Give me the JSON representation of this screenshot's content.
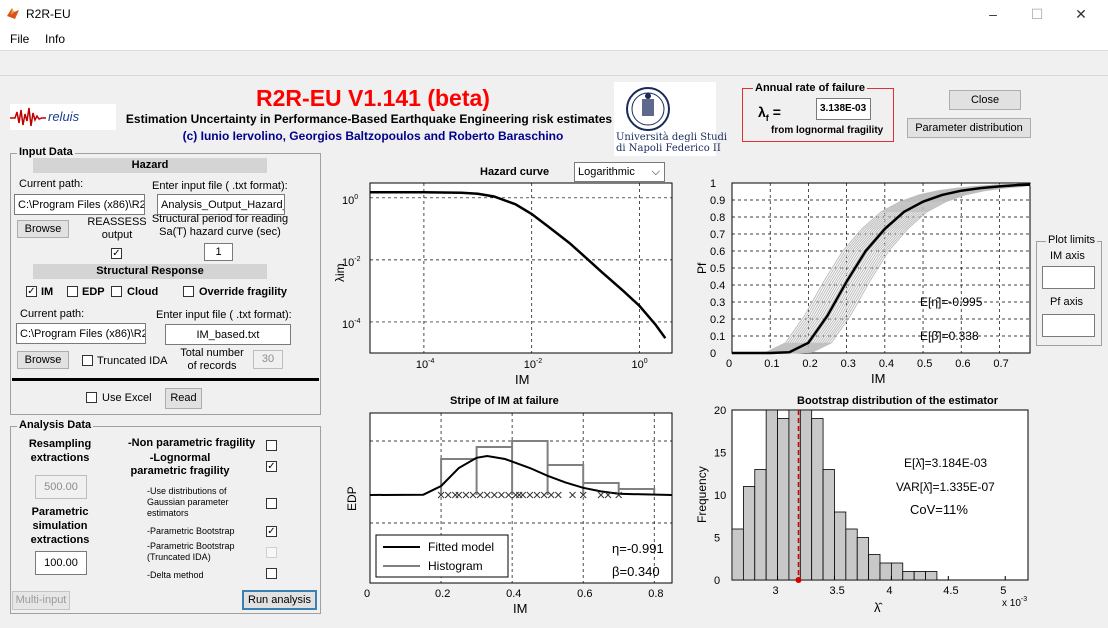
{
  "window": {
    "title": "R2R-EU",
    "minimize": "–",
    "maximize": "☐",
    "close": "✕"
  },
  "menu": {
    "file": "File",
    "info": "Info"
  },
  "header": {
    "app_title": "R2R-EU V1.141 (beta)",
    "subtitle": "Estimation Uncertainty in Performance-Based Earthquake Engineering risk estimates",
    "authors": "(c) Iunio Iervolino, Georgios Baltzopoulos and Roberto Baraschino",
    "reluis_logo": "reluis",
    "university_line1": "Università degli Studi",
    "university_line2": "di Napoli Federico II",
    "title_color": "#ff0000",
    "authors_color": "#00008b"
  },
  "annual_rate": {
    "title": "Annual rate of failure",
    "symbol": "λ",
    "subscript": "f",
    "equals": "=",
    "value": "3.138E-03",
    "note": "from lognormal fragility"
  },
  "buttons": {
    "close": "Close",
    "parameter_distribution": "Parameter distribution",
    "browse": "Browse",
    "read": "Read",
    "multi_input": "Multi-input",
    "run_analysis": "Run analysis"
  },
  "input_data": {
    "title": "Input Data",
    "hazard": {
      "section": "Hazard",
      "current_path_label": "Current path:",
      "current_path": "C:\\Program Files (x86)\\R2",
      "input_file_label": "Enter input file ( .txt format):",
      "input_file": "Analysis_Output_Hazard_",
      "reassess_label": "REASSESS output",
      "reassess_checked": "✓",
      "period_label": "Structural period for reading Sa(T) hazard curve (sec)",
      "period_value": "1"
    },
    "structural": {
      "section": "Structural Response",
      "im_label": "IM",
      "im_checked": "✓",
      "edp_label": "EDP",
      "cloud_label": "Cloud",
      "override_label": "Override fragility",
      "current_path_label": "Current path:",
      "current_path": "C:\\Program Files (x86)\\R2",
      "input_file_label": "Enter input file ( .txt format):",
      "input_file": "IM_based.txt",
      "truncated_label": "Truncated IDA",
      "total_records_label": "Total number of  records",
      "total_records": "30"
    },
    "use_excel_label": "Use Excel"
  },
  "analysis_data": {
    "title": "Analysis Data",
    "resampling_label": "Resampling extractions",
    "resampling_value": "500.00",
    "parametric_label": "Parametric simulation extractions",
    "parametric_value": "100.00",
    "options": [
      {
        "label": "-Non parametric fragility",
        "check": ""
      },
      {
        "label": "-Lognormal parametric fragility",
        "check": "✓"
      },
      {
        "label": "-Use distributions of Gaussian parameter estimators",
        "check": ""
      },
      {
        "label": "-Parametric Bootstrap",
        "check": "✓"
      },
      {
        "label": "-Parametric Bootstrap (Truncated IDA)",
        "check": ""
      },
      {
        "label": "-Delta method",
        "check": ""
      }
    ]
  },
  "hazard_plot": {
    "title": "Hazard curve",
    "scale_select": "Logarithmic",
    "xlabel": "IM",
    "ylabel": "λim",
    "y_ticks": [
      "10",
      "10",
      "10"
    ],
    "y_exps": [
      "0",
      "-2",
      "-4"
    ],
    "x_ticks": [
      "10",
      "10",
      "10"
    ],
    "x_exps": [
      "-4",
      "-2",
      "0"
    ]
  },
  "fragility_plot": {
    "xlabel": "IM",
    "ylabel": "Pf",
    "x_ticks": [
      "0",
      "0.1",
      "0.2",
      "0.3",
      "0.4",
      "0.5",
      "0.6",
      "0.7"
    ],
    "y_ticks": [
      "0",
      "0.1",
      "0.2",
      "0.3",
      "0.4",
      "0.5",
      "0.6",
      "0.7",
      "0.8",
      "0.9",
      "1"
    ],
    "eta_text": "E[η̂]=-0.995",
    "beta_text": "E[β̂]=0.338"
  },
  "stripe_plot": {
    "title": "Stripe of IM at failure",
    "xlabel": "IM",
    "ylabel": "EDP",
    "x_ticks": [
      "0",
      "0.2",
      "0.4",
      "0.6",
      "0.8"
    ],
    "legend": [
      "Fitted model",
      "Histogram"
    ],
    "eta_text": "η=-0.991",
    "beta_text": "β=0.340"
  },
  "bootstrap_plot": {
    "title": "Bootstrap distribution of the estimator",
    "xlabel": "λ̂",
    "ylabel": "Frequency",
    "x_ticks": [
      "3",
      "3.5",
      "4",
      "4.5",
      "5"
    ],
    "x_multiplier": "x 10",
    "x_multiplier_exp": "-3",
    "y_ticks": [
      "0",
      "5",
      "10",
      "15",
      "20"
    ],
    "mean_text": "E[λ̂]=3.184E-03",
    "var_text": "VAR[λ̂]=1.335E-07",
    "cov_text": "CoV=11%"
  },
  "plot_limits": {
    "title": "Plot limits",
    "im_axis_label": "IM axis",
    "im_axis_value": "",
    "pf_axis_label": "Pf axis",
    "pf_axis_value": ""
  },
  "chart_data": [
    {
      "type": "line",
      "title": "Hazard curve",
      "xlabel": "IM",
      "ylabel": "λim",
      "xscale": "log",
      "yscale": "log",
      "xlim": [
        1e-05,
        4
      ],
      "ylim": [
        1e-05,
        3
      ],
      "series": [
        {
          "x": [
            1e-05,
            0.0001,
            0.0005,
            0.001,
            0.002,
            0.005,
            0.01,
            0.02,
            0.05,
            0.1,
            0.2,
            0.5,
            1,
            2,
            3
          ],
          "y": [
            1.5,
            1.5,
            1.45,
            1.35,
            1.1,
            0.62,
            0.3,
            0.12,
            0.035,
            0.012,
            0.004,
            0.001,
            0.00033,
            8e-05,
            3e-05
          ]
        }
      ]
    },
    {
      "type": "line",
      "xlabel": "IM",
      "ylabel": "Pf",
      "xlim": [
        0,
        0.78
      ],
      "ylim": [
        0,
        1
      ],
      "series": [
        {
          "x": [
            0,
            0.1,
            0.15,
            0.2,
            0.25,
            0.3,
            0.35,
            0.4,
            0.45,
            0.5,
            0.55,
            0.6,
            0.65,
            0.7,
            0.75,
            0.78
          ],
          "y": [
            0,
            0,
            0.005,
            0.06,
            0.22,
            0.42,
            0.6,
            0.73,
            0.83,
            0.89,
            0.93,
            0.955,
            0.97,
            0.98,
            0.988,
            0.99
          ]
        }
      ]
    },
    {
      "type": "line",
      "title": "Stripe of IM at failure",
      "xlabel": "IM",
      "ylabel": "EDP",
      "xlim": [
        0,
        0.85
      ],
      "ylim": [
        0,
        1
      ],
      "series": [
        {
          "name": "Fitted model",
          "x": [
            0,
            0.15,
            0.2,
            0.25,
            0.3,
            0.33,
            0.38,
            0.45,
            0.5,
            0.55,
            0.6,
            0.65,
            0.7,
            0.85
          ],
          "y": [
            0,
            0.005,
            0.15,
            0.45,
            0.62,
            0.65,
            0.6,
            0.45,
            0.32,
            0.21,
            0.12,
            0.06,
            0.02,
            0.0
          ]
        },
        {
          "name": "Histogram",
          "x": [
            0.2,
            0.3,
            0.4,
            0.5,
            0.6,
            0.7
          ],
          "y": [
            0.6,
            0.8,
            0.9,
            0.5,
            0.2,
            0.1
          ]
        }
      ],
      "points_x": [
        0.2,
        0.22,
        0.24,
        0.25,
        0.27,
        0.29,
        0.31,
        0.33,
        0.35,
        0.37,
        0.39,
        0.41,
        0.42,
        0.43,
        0.45,
        0.47,
        0.49,
        0.51,
        0.53,
        0.57,
        0.6,
        0.65,
        0.67,
        0.7
      ]
    },
    {
      "type": "bar",
      "title": "Bootstrap distribution of the estimator",
      "xlabel": "λ̂",
      "ylabel": "Frequency",
      "xlim": [
        0.0026,
        0.0052
      ],
      "ylim": [
        0,
        20
      ],
      "bin_edges": [
        0.0026,
        0.0027,
        0.0028,
        0.0029,
        0.003,
        0.0031,
        0.0032,
        0.0033,
        0.0034,
        0.0035,
        0.0036,
        0.0037,
        0.0038,
        0.0039,
        0.004,
        0.0041,
        0.0042,
        0.0043,
        0.0044
      ],
      "values": [
        6,
        11,
        13,
        20,
        19,
        22,
        20,
        19,
        13,
        8,
        6,
        5,
        3,
        2,
        2,
        1,
        1,
        1
      ],
      "mean_marker": 0.003184
    }
  ]
}
